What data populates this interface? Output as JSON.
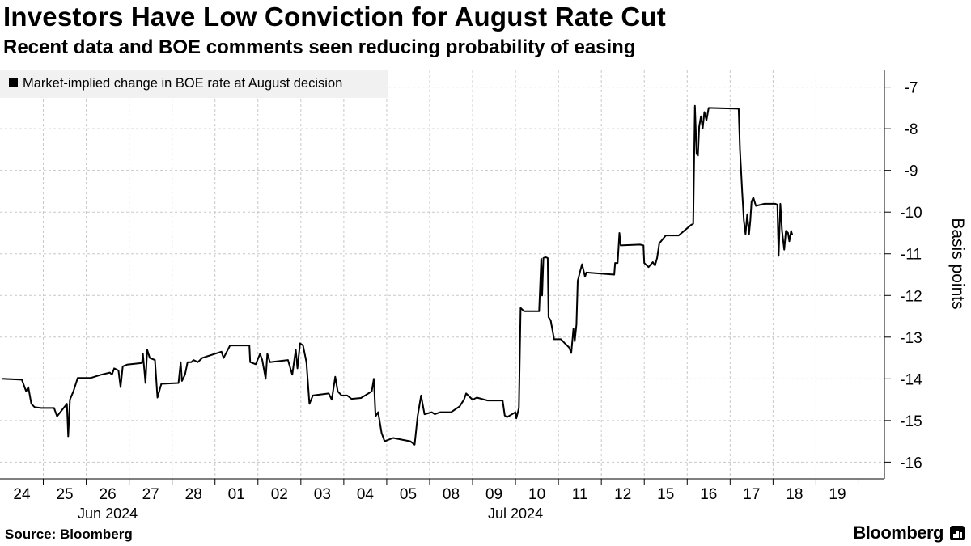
{
  "title": "Investors Have Low Conviction for August Rate Cut",
  "subtitle": "Recent data and BOE comments seen reducing probability of easing",
  "source": "Source: Bloomberg",
  "brand": "Bloomberg",
  "chart_data": {
    "type": "line",
    "title": "Investors Have Low Conviction for August Rate Cut",
    "ylabel": "Basis points",
    "xlabel": "",
    "ylim": [
      -16.4,
      -6.6
    ],
    "yticks": [
      -7,
      -8,
      -9,
      -10,
      -11,
      -12,
      -13,
      -14,
      -15,
      -16
    ],
    "ytick_labels": [
      "-7",
      "-8",
      "-9",
      "-10",
      "-11",
      "-12",
      "-13",
      "-14",
      "-15",
      "-16"
    ],
    "y_axis_side": "right",
    "grid": "vertical dashed",
    "legend_position": "top-left",
    "series_color": "#000000",
    "categories": [
      "24",
      "25",
      "26",
      "27",
      "28",
      "01",
      "02",
      "03",
      "04",
      "05",
      "08",
      "09",
      "10",
      "11",
      "12",
      "15",
      "16",
      "17",
      "18",
      "19"
    ],
    "month_labels": [
      {
        "label": "Jun 2024",
        "at_category": 2
      },
      {
        "label": "Jul 2024",
        "at_category": 11.5
      }
    ],
    "series": [
      {
        "name": "Market-implied change in BOE rate at August decision",
        "points": [
          [
            -0.45,
            -14.0
          ],
          [
            0.0,
            -14.02
          ],
          [
            0.1,
            -14.3
          ],
          [
            0.15,
            -14.2
          ],
          [
            0.22,
            -14.6
          ],
          [
            0.3,
            -14.68
          ],
          [
            0.45,
            -14.7
          ],
          [
            0.75,
            -14.7
          ],
          [
            0.82,
            -14.9
          ],
          [
            0.88,
            -14.82
          ],
          [
            1.05,
            -14.6
          ],
          [
            1.08,
            -15.38
          ],
          [
            1.12,
            -14.5
          ],
          [
            1.2,
            -14.3
          ],
          [
            1.3,
            -13.98
          ],
          [
            1.6,
            -13.98
          ],
          [
            1.85,
            -13.9
          ],
          [
            2.05,
            -13.85
          ],
          [
            2.1,
            -13.9
          ],
          [
            2.15,
            -13.75
          ],
          [
            2.25,
            -13.8
          ],
          [
            2.3,
            -14.2
          ],
          [
            2.35,
            -13.7
          ],
          [
            2.45,
            -13.66
          ],
          [
            2.8,
            -13.62
          ],
          [
            2.82,
            -13.4
          ],
          [
            2.88,
            -14.1
          ],
          [
            2.92,
            -13.3
          ],
          [
            2.98,
            -13.5
          ],
          [
            3.1,
            -13.55
          ],
          [
            3.16,
            -14.45
          ],
          [
            3.25,
            -14.12
          ],
          [
            3.65,
            -14.1
          ],
          [
            3.7,
            -13.6
          ],
          [
            3.73,
            -14.05
          ],
          [
            3.8,
            -13.9
          ],
          [
            3.86,
            -13.6
          ],
          [
            3.95,
            -13.6
          ],
          [
            4.0,
            -13.55
          ],
          [
            4.1,
            -13.6
          ],
          [
            4.2,
            -13.5
          ],
          [
            4.65,
            -13.35
          ],
          [
            4.7,
            -13.5
          ],
          [
            4.85,
            -13.2
          ],
          [
            5.3,
            -13.2
          ],
          [
            5.32,
            -13.6
          ],
          [
            5.45,
            -13.65
          ],
          [
            5.55,
            -13.4
          ],
          [
            5.6,
            -13.55
          ],
          [
            5.68,
            -14.0
          ],
          [
            5.72,
            -13.4
          ],
          [
            5.78,
            -13.6
          ],
          [
            6.2,
            -13.55
          ],
          [
            6.3,
            -13.9
          ],
          [
            6.38,
            -13.3
          ],
          [
            6.42,
            -13.75
          ],
          [
            6.48,
            -13.15
          ],
          [
            6.55,
            -13.2
          ],
          [
            6.63,
            -13.6
          ],
          [
            6.7,
            -14.6
          ],
          [
            6.78,
            -14.4
          ],
          [
            7.15,
            -14.35
          ],
          [
            7.22,
            -14.5
          ],
          [
            7.3,
            -13.95
          ],
          [
            7.36,
            -14.3
          ],
          [
            7.45,
            -14.4
          ],
          [
            7.58,
            -14.4
          ],
          [
            7.68,
            -14.48
          ],
          [
            7.9,
            -14.46
          ],
          [
            8.15,
            -14.3
          ],
          [
            8.2,
            -14.0
          ],
          [
            8.24,
            -14.9
          ],
          [
            8.3,
            -14.8
          ],
          [
            8.38,
            -15.3
          ],
          [
            8.45,
            -15.5
          ],
          [
            8.65,
            -15.42
          ],
          [
            9.05,
            -15.5
          ],
          [
            9.15,
            -15.58
          ],
          [
            9.22,
            -14.9
          ],
          [
            9.3,
            -14.4
          ],
          [
            9.38,
            -14.85
          ],
          [
            9.55,
            -14.8
          ],
          [
            9.62,
            -14.85
          ],
          [
            9.75,
            -14.8
          ],
          [
            10.0,
            -14.8
          ],
          [
            10.2,
            -14.66
          ],
          [
            10.3,
            -14.5
          ],
          [
            10.35,
            -14.35
          ],
          [
            10.5,
            -14.5
          ],
          [
            10.6,
            -14.45
          ],
          [
            10.85,
            -14.52
          ],
          [
            11.2,
            -14.52
          ],
          [
            11.25,
            -14.88
          ],
          [
            11.3,
            -14.92
          ],
          [
            11.5,
            -14.8
          ],
          [
            11.52,
            -14.95
          ],
          [
            11.58,
            -14.7
          ],
          [
            11.62,
            -12.3
          ],
          [
            11.7,
            -12.38
          ],
          [
            11.95,
            -12.38
          ],
          [
            12.05,
            -12.38
          ],
          [
            12.1,
            -11.12
          ],
          [
            12.12,
            -12.0
          ],
          [
            12.15,
            -11.1
          ],
          [
            12.2,
            -11.08
          ],
          [
            12.25,
            -11.1
          ],
          [
            12.27,
            -12.52
          ],
          [
            12.32,
            -12.6
          ],
          [
            12.4,
            -13.05
          ],
          [
            12.56,
            -13.05
          ],
          [
            12.65,
            -13.15
          ],
          [
            12.75,
            -13.25
          ],
          [
            12.8,
            -13.38
          ],
          [
            12.85,
            -12.8
          ],
          [
            12.88,
            -13.1
          ],
          [
            12.92,
            -12.7
          ],
          [
            12.95,
            -11.65
          ],
          [
            13.0,
            -11.45
          ],
          [
            13.05,
            -11.25
          ],
          [
            13.12,
            -11.55
          ],
          [
            13.15,
            -11.45
          ],
          [
            13.8,
            -11.5
          ],
          [
            13.82,
            -11.22
          ],
          [
            13.88,
            -11.22
          ],
          [
            13.92,
            -10.5
          ],
          [
            13.95,
            -10.8
          ],
          [
            14.4,
            -10.78
          ],
          [
            14.48,
            -10.8
          ],
          [
            14.5,
            -11.22
          ],
          [
            14.6,
            -11.32
          ],
          [
            14.7,
            -11.2
          ],
          [
            14.75,
            -11.28
          ],
          [
            14.8,
            -11.1
          ],
          [
            14.85,
            -10.75
          ],
          [
            15.0,
            -10.56
          ],
          [
            15.3,
            -10.56
          ],
          [
            15.6,
            -10.3
          ],
          [
            15.64,
            -10.28
          ],
          [
            15.68,
            -7.45
          ],
          [
            15.72,
            -8.6
          ],
          [
            15.75,
            -8.65
          ],
          [
            15.78,
            -7.95
          ],
          [
            15.82,
            -7.7
          ],
          [
            15.86,
            -8.0
          ],
          [
            15.9,
            -7.6
          ],
          [
            15.95,
            -7.8
          ],
          [
            16.0,
            -7.5
          ],
          [
            16.7,
            -7.52
          ],
          [
            16.73,
            -8.5
          ],
          [
            16.78,
            -9.5
          ],
          [
            16.82,
            -10.2
          ],
          [
            16.86,
            -10.53
          ],
          [
            16.9,
            -10.05
          ],
          [
            16.94,
            -10.53
          ],
          [
            16.97,
            -10.2
          ],
          [
            17.0,
            -9.75
          ],
          [
            17.04,
            -9.65
          ],
          [
            17.1,
            -9.85
          ],
          [
            17.3,
            -9.8
          ],
          [
            17.55,
            -9.8
          ],
          [
            17.6,
            -9.82
          ],
          [
            17.63,
            -11.05
          ],
          [
            17.67,
            -9.8
          ],
          [
            17.71,
            -10.45
          ],
          [
            17.76,
            -10.9
          ],
          [
            17.8,
            -10.45
          ],
          [
            17.85,
            -10.5
          ],
          [
            17.88,
            -10.7
          ],
          [
            17.92,
            -10.45
          ],
          [
            17.95,
            -10.55
          ]
        ]
      }
    ]
  }
}
